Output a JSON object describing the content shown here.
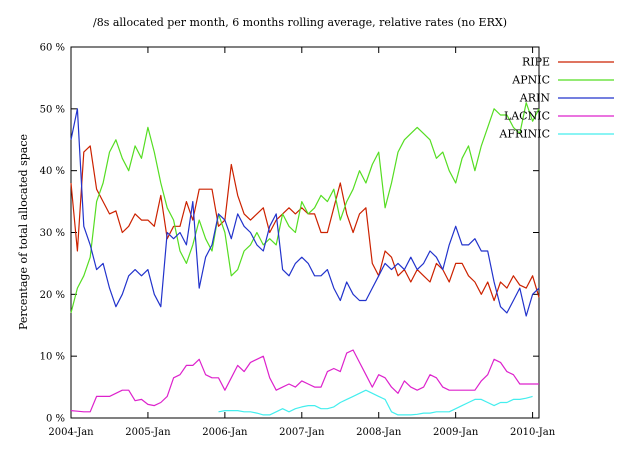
{
  "chart_data": {
    "type": "line",
    "title": "/8s allocated per month, 6 months rolling average, relative rates (no ERX)",
    "xlabel": "",
    "ylabel": "Percentage of total allocated space",
    "ylim": [
      0,
      60
    ],
    "y_ticks": [
      "0 %",
      "10 %",
      "20 %",
      "30 %",
      "40 %",
      "50 %",
      "60 %"
    ],
    "y_tick_values": [
      0,
      10,
      20,
      30,
      40,
      50,
      60
    ],
    "x_ticks": [
      "2004-Jan",
      "2005-Jan",
      "2006-Jan",
      "2007-Jan",
      "2008-Jan",
      "2009-Jan",
      "2010-Jan"
    ],
    "x_tick_values": [
      0,
      12,
      24,
      36,
      48,
      60,
      72
    ],
    "x_range": [
      "2004-Jan",
      "2010-Feb"
    ],
    "grid": false,
    "legend_position": "top-right",
    "series": [
      {
        "name": "RIPE",
        "color": "#cc2200",
        "start": "2004-Jan",
        "values": [
          38,
          27,
          43,
          44,
          37,
          35,
          33,
          33.5,
          30,
          31,
          33,
          32,
          32,
          31,
          36,
          29,
          31,
          31,
          35,
          32,
          37,
          37,
          37,
          31,
          32,
          41,
          36,
          33,
          32,
          33,
          34,
          30,
          32,
          33,
          34,
          33,
          34,
          33,
          33,
          30,
          30,
          34,
          38,
          33,
          30,
          33,
          34,
          25,
          23,
          27,
          26,
          23,
          24,
          22,
          24,
          23,
          22,
          25,
          24,
          22,
          25,
          25,
          23,
          22,
          20,
          22,
          19,
          22,
          21,
          23,
          21.5,
          21,
          23,
          19.5
        ]
      },
      {
        "name": "APNIC",
        "color": "#55dd22",
        "start": "2004-Jan",
        "values": [
          17,
          21,
          23,
          26,
          35,
          38,
          43,
          45,
          42,
          40,
          44,
          42,
          47,
          43,
          38,
          34,
          32,
          27,
          25,
          28,
          32,
          29,
          27,
          33,
          30,
          23,
          24,
          27,
          28,
          30,
          28,
          29,
          28,
          33,
          31,
          30,
          35,
          33,
          34,
          36,
          35,
          37,
          32,
          35,
          37,
          40,
          38,
          41,
          43,
          34,
          38,
          43,
          45,
          46,
          47,
          46,
          45,
          42,
          43,
          40,
          38,
          42,
          44,
          40,
          44,
          47,
          50,
          49,
          49,
          47,
          46,
          51,
          48,
          50
        ]
      },
      {
        "name": "ARIN",
        "color": "#2233cc",
        "start": "2004-Jan",
        "values": [
          45,
          50,
          31,
          28,
          24,
          25,
          21,
          18,
          20,
          23,
          24,
          23,
          24,
          20,
          18,
          30,
          29,
          30,
          28,
          35,
          21,
          26,
          28,
          33,
          32,
          29,
          33,
          31,
          30,
          28,
          27,
          31,
          33,
          24,
          23,
          25,
          26,
          25,
          23,
          23,
          24,
          21,
          19,
          22,
          20,
          19,
          19,
          21,
          23,
          25,
          24,
          25,
          24,
          26,
          24,
          25,
          27,
          26,
          24,
          28,
          31,
          28,
          28,
          29,
          27,
          27,
          22,
          18,
          17,
          19,
          21,
          16.5,
          20,
          21
        ]
      },
      {
        "name": "LACNIC",
        "color": "#dd22cc",
        "start": "2004-Jan",
        "values": [
          1.2,
          1.1,
          1.0,
          1.0,
          3.5,
          3.5,
          3.5,
          4.0,
          4.5,
          4.5,
          2.8,
          3.0,
          2.2,
          2.0,
          2.5,
          3.5,
          6.5,
          7.0,
          8.5,
          8.5,
          9.5,
          7.0,
          6.5,
          6.5,
          4.5,
          6.5,
          8.5,
          7.5,
          9.0,
          9.5,
          10.0,
          6.5,
          4.5,
          5.0,
          5.5,
          5.0,
          6.0,
          5.5,
          5.0,
          5.0,
          7.5,
          8.0,
          7.5,
          10.5,
          11.0,
          9.0,
          7.0,
          5.0,
          7.0,
          6.5,
          5.0,
          4.0,
          6.0,
          5.0,
          4.5,
          5.0,
          7.0,
          6.5,
          5.0,
          4.5,
          4.5,
          4.5,
          4.5,
          4.5,
          6.0,
          7.0,
          9.5,
          9.0,
          7.5,
          7.0,
          5.5,
          5.5,
          5.5,
          5.5
        ]
      },
      {
        "name": "AFRINIC",
        "color": "#44eeee",
        "start": "2005-Dec",
        "values": [
          1.0,
          1.2,
          1.2,
          1.2,
          1.0,
          1.0,
          0.8,
          0.5,
          0.5,
          1.0,
          1.5,
          1.0,
          1.5,
          1.8,
          2.0,
          2.0,
          1.5,
          1.5,
          1.8,
          2.5,
          3.0,
          3.5,
          4.0,
          4.5,
          4.0,
          3.5,
          3.0,
          1.0,
          0.5,
          0.5,
          0.5,
          0.6,
          0.8,
          0.8,
          1.0,
          1.0,
          1.0,
          1.5,
          2.0,
          2.5,
          3.0,
          3.0,
          2.5,
          2.0,
          2.5,
          2.5,
          3.0,
          3.0,
          3.2,
          3.5
        ]
      }
    ]
  }
}
